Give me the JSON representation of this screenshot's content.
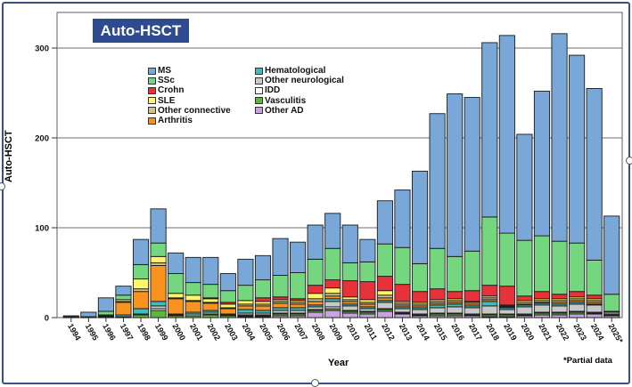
{
  "chart_data": {
    "type": "bar",
    "stacked": true,
    "title": "Auto-HSCT",
    "xlabel": "Year",
    "ylabel": "Auto-HSCT",
    "ylim": [
      0,
      337
    ],
    "yticks": [
      0,
      100,
      200,
      300
    ],
    "grid": "horizontal",
    "legend_position": "top-left",
    "annotation": "*Partial data",
    "categories": [
      "1994",
      "1995",
      "1996",
      "1997",
      "1998",
      "1999",
      "2000",
      "2001",
      "2002",
      "2003",
      "2004",
      "2005",
      "2006",
      "2007",
      "2008",
      "2009",
      "2010",
      "2011",
      "2012",
      "2013",
      "2014",
      "2015",
      "2016",
      "2017",
      "2018",
      "2019",
      "2020",
      "2021",
      "2022",
      "2023",
      "2024",
      "2025*"
    ],
    "series": [
      {
        "name": "Other AD",
        "color": "#c9a3e0",
        "values": [
          0,
          0,
          0,
          0,
          0,
          0,
          0,
          0,
          0,
          0,
          1,
          1,
          2,
          2,
          6,
          8,
          5,
          4,
          7,
          4,
          2,
          2,
          2,
          2,
          1,
          1,
          2,
          3,
          3,
          4,
          4,
          2
        ]
      },
      {
        "name": "Vasculitis",
        "color": "#5cb83a",
        "values": [
          0,
          0,
          1,
          1,
          3,
          8,
          2,
          2,
          3,
          2,
          1,
          1,
          2,
          2,
          2,
          2,
          2,
          2,
          2,
          1,
          1,
          2,
          2,
          1,
          2,
          2,
          1,
          2,
          2,
          2,
          1,
          1
        ]
      },
      {
        "name": "IDD",
        "color": "#ffffff",
        "values": [
          0,
          0,
          0,
          0,
          0,
          2,
          0,
          0,
          1,
          0,
          1,
          1,
          1,
          1,
          1,
          2,
          1,
          1,
          1,
          1,
          1,
          1,
          1,
          1,
          1,
          1,
          1,
          1,
          1,
          1,
          1,
          1
        ]
      },
      {
        "name": "Other neurological",
        "color": "#c8c8c8",
        "values": [
          0,
          0,
          0,
          0,
          1,
          3,
          1,
          2,
          2,
          1,
          2,
          2,
          3,
          3,
          3,
          6,
          5,
          3,
          7,
          4,
          5,
          6,
          7,
          7,
          9,
          5,
          8,
          8,
          7,
          8,
          8,
          2
        ]
      },
      {
        "name": "Hematological",
        "color": "#3fbcc0",
        "values": [
          0,
          0,
          1,
          2,
          6,
          5,
          1,
          2,
          2,
          1,
          4,
          3,
          3,
          3,
          2,
          3,
          2,
          2,
          2,
          2,
          2,
          3,
          3,
          2,
          5,
          2,
          2,
          2,
          2,
          2,
          1,
          1
        ]
      },
      {
        "name": "Arthritis",
        "color": "#f7931e",
        "values": [
          1,
          0,
          1,
          14,
          19,
          40,
          17,
          12,
          8,
          6,
          4,
          5,
          5,
          4,
          4,
          3,
          3,
          3,
          3,
          2,
          2,
          2,
          2,
          2,
          2,
          1,
          1,
          1,
          2,
          2,
          2,
          0
        ]
      },
      {
        "name": "Other connective",
        "color": "#cfc28a",
        "values": [
          0,
          0,
          0,
          1,
          3,
          3,
          1,
          1,
          1,
          1,
          2,
          2,
          2,
          2,
          3,
          3,
          2,
          2,
          3,
          2,
          2,
          2,
          2,
          2,
          2,
          1,
          2,
          2,
          2,
          2,
          2,
          0
        ]
      },
      {
        "name": "SLE",
        "color": "#fff46a",
        "values": [
          0,
          0,
          0,
          2,
          11,
          7,
          5,
          6,
          4,
          4,
          4,
          3,
          2,
          2,
          6,
          6,
          3,
          3,
          5,
          2,
          2,
          2,
          2,
          1,
          2,
          1,
          2,
          2,
          2,
          2,
          2,
          0
        ]
      },
      {
        "name": "Crohn",
        "color": "#e8323a",
        "values": [
          0,
          0,
          0,
          0,
          0,
          0,
          0,
          0,
          1,
          2,
          0,
          4,
          3,
          2,
          9,
          9,
          18,
          20,
          16,
          19,
          12,
          12,
          8,
          12,
          12,
          21,
          5,
          8,
          5,
          6,
          4,
          0
        ]
      },
      {
        "name": "SSc",
        "color": "#74d67f",
        "values": [
          0,
          1,
          4,
          5,
          16,
          15,
          22,
          14,
          15,
          13,
          17,
          20,
          24,
          29,
          29,
          35,
          20,
          22,
          36,
          41,
          31,
          45,
          39,
          44,
          76,
          59,
          62,
          62,
          59,
          54,
          39,
          19
        ]
      },
      {
        "name": "MS",
        "color": "#78a7d8",
        "values": [
          1,
          5,
          15,
          10,
          28,
          38,
          23,
          28,
          30,
          19,
          29,
          27,
          41,
          34,
          38,
          39,
          42,
          25,
          48,
          64,
          103,
          150,
          181,
          171,
          194,
          220,
          118,
          161,
          231,
          209,
          191,
          87
        ]
      }
    ]
  },
  "legend": {
    "left_column": [
      {
        "label": "MS",
        "color": "#78a7d8"
      },
      {
        "label": "SSc",
        "color": "#74d67f"
      },
      {
        "label": "Crohn",
        "color": "#e8323a"
      },
      {
        "label": "SLE",
        "color": "#fff46a"
      },
      {
        "label": "Other connective",
        "color": "#cfc28a"
      },
      {
        "label": "Arthritis",
        "color": "#f7931e"
      }
    ],
    "right_column": [
      {
        "label": "Hematological",
        "color": "#3fbcc0"
      },
      {
        "label": "Other neurological",
        "color": "#c8c8c8"
      },
      {
        "label": "IDD",
        "color": "#ffffff"
      },
      {
        "label": "Vasculitis",
        "color": "#5cb83a"
      },
      {
        "label": "Other AD",
        "color": "#c9a3e0"
      }
    ]
  }
}
